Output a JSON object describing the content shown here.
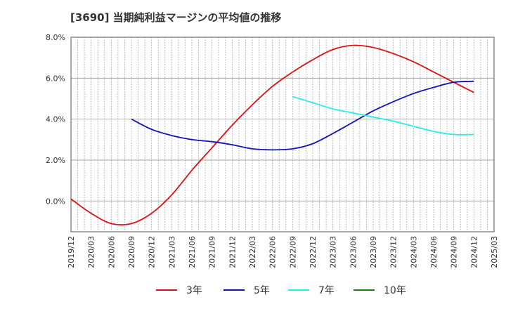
{
  "chart_data": {
    "type": "line",
    "title": "[3690]  当期純利益マージンの平均値の推移",
    "xlabel": "",
    "ylabel": "",
    "ylim": [
      -1.5,
      8.0
    ],
    "yticks": [
      0.0,
      2.0,
      4.0,
      6.0,
      8.0
    ],
    "ytick_labels": [
      "0.0%",
      "2.0%",
      "4.0%",
      "6.0%",
      "8.0%"
    ],
    "x_labels": [
      "2019/12",
      "2020/03",
      "2020/06",
      "2020/09",
      "2020/12",
      "2021/03",
      "2021/06",
      "2021/09",
      "2021/12",
      "2022/03",
      "2022/06",
      "2022/09",
      "2022/12",
      "2023/03",
      "2023/06",
      "2023/09",
      "2023/12",
      "2024/03",
      "2024/06",
      "2024/09",
      "2024/12",
      "2025/03"
    ],
    "grid": true,
    "legend_position": "bottom",
    "series": [
      {
        "name": "3年",
        "color": "#dd1111",
        "values": [
          0.1,
          -0.6,
          -1.1,
          -1.1,
          -0.6,
          0.3,
          1.5,
          2.6,
          3.7,
          4.7,
          5.6,
          6.3,
          6.9,
          7.4,
          7.6,
          7.5,
          7.2,
          6.8,
          6.3,
          5.8,
          5.3,
          null
        ]
      },
      {
        "name": "5年",
        "color": "#1111bb",
        "values": [
          null,
          null,
          null,
          4.0,
          3.5,
          3.2,
          3.0,
          2.9,
          2.75,
          2.55,
          2.5,
          2.55,
          2.8,
          3.3,
          3.85,
          4.4,
          4.85,
          5.25,
          5.55,
          5.8,
          5.85,
          null
        ]
      },
      {
        "name": "7年",
        "color": "#22eeee",
        "values": [
          null,
          null,
          null,
          null,
          null,
          null,
          null,
          null,
          null,
          null,
          null,
          5.1,
          4.8,
          4.5,
          4.3,
          4.1,
          3.9,
          3.65,
          3.4,
          3.25,
          3.25,
          null
        ]
      },
      {
        "name": "10年",
        "color": "#118811",
        "values": [
          null,
          null,
          null,
          null,
          null,
          null,
          null,
          null,
          null,
          null,
          null,
          null,
          null,
          null,
          null,
          null,
          null,
          null,
          null,
          null,
          null,
          null
        ]
      }
    ]
  }
}
